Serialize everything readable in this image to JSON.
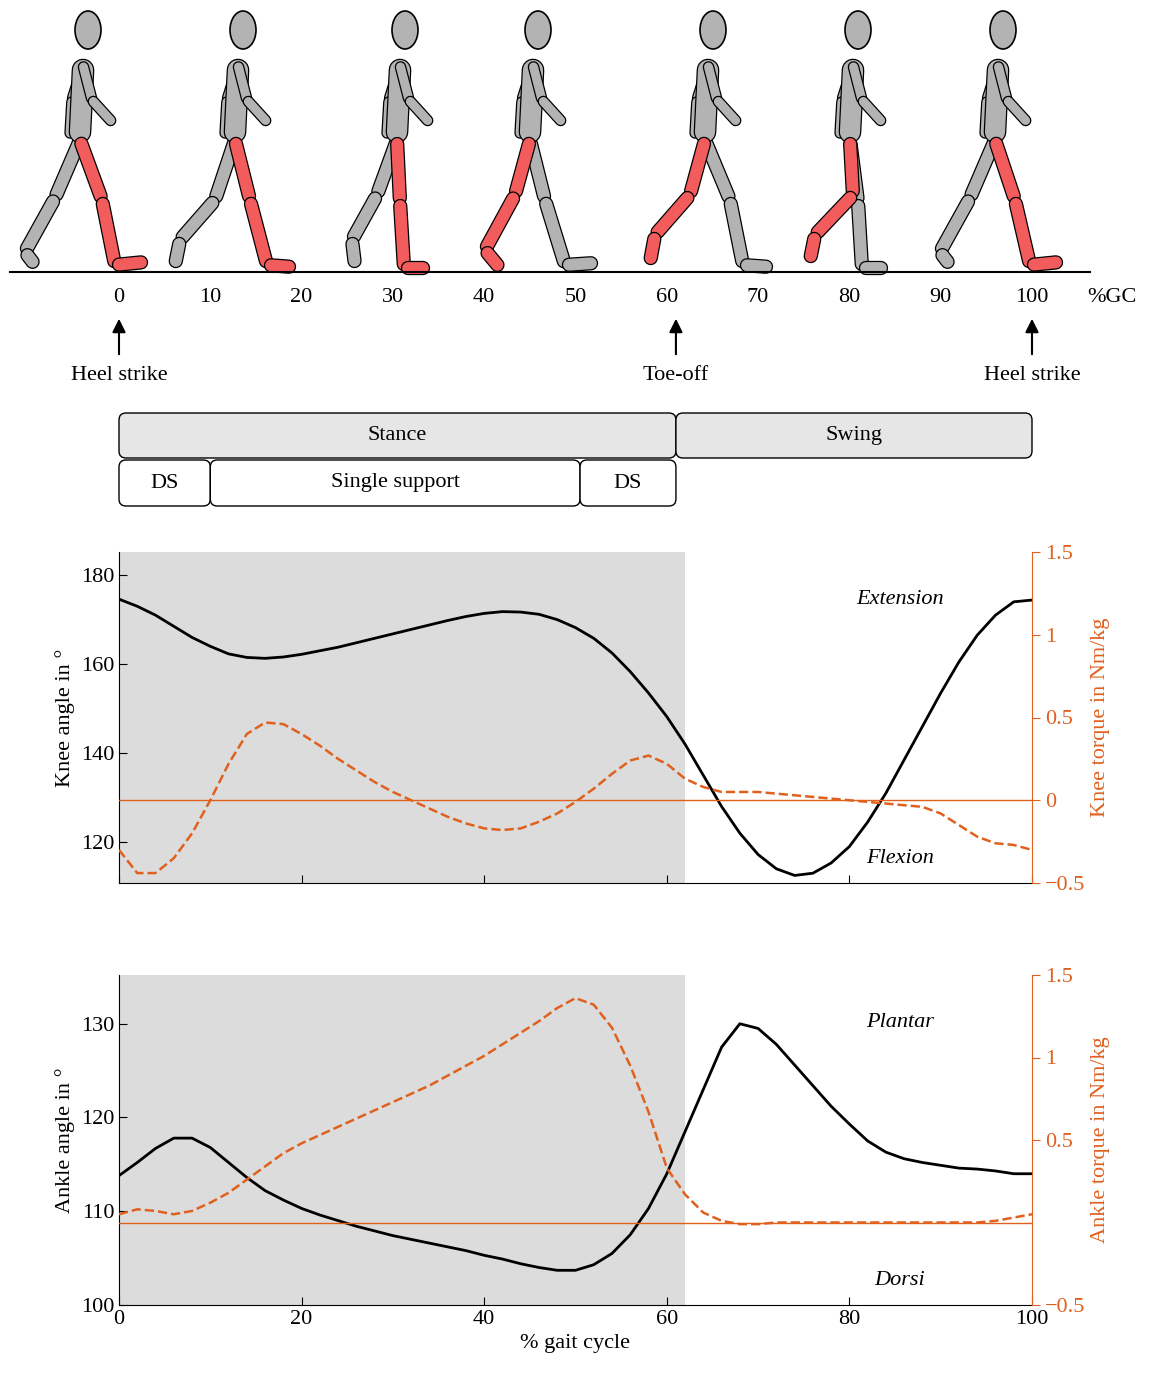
{
  "diagram": {
    "axis": {
      "ticks": [
        0,
        10,
        20,
        30,
        40,
        50,
        60,
        70,
        80,
        90,
        100
      ],
      "label": "%GC"
    },
    "events": [
      {
        "position": 0,
        "label": "Heel strike"
      },
      {
        "position": 61,
        "label": "Toe-off"
      },
      {
        "position": 100,
        "label": "Heel strike"
      }
    ],
    "phases": [
      {
        "label": "Stance",
        "start": 0,
        "end": 61
      },
      {
        "label": "Swing",
        "start": 61,
        "end": 100
      }
    ],
    "subphases": [
      {
        "label": "DS",
        "start": 0,
        "end": 10
      },
      {
        "label": "Single support",
        "start": 10,
        "end": 50.5
      },
      {
        "label": "DS",
        "start": 50.5,
        "end": 61
      }
    ]
  },
  "chart_data": [
    {
      "type": "line",
      "x": [
        0,
        2,
        4,
        6,
        8,
        10,
        12,
        14,
        16,
        18,
        20,
        22,
        24,
        26,
        28,
        30,
        32,
        34,
        36,
        38,
        40,
        42,
        44,
        46,
        48,
        50,
        52,
        54,
        56,
        58,
        60,
        62,
        64,
        66,
        68,
        70,
        72,
        74,
        76,
        78,
        80,
        82,
        84,
        86,
        88,
        90,
        92,
        94,
        96,
        98,
        100
      ],
      "xlim": [
        0,
        100
      ],
      "xticks": [
        0,
        20,
        40,
        60,
        80,
        100
      ],
      "tick_labels": "y",
      "ylabel": "Knee angle in °",
      "ylim": [
        110.8,
        185.2
      ],
      "yticks": [
        120,
        140,
        160,
        180
      ],
      "y2label": "Knee torque in Nm/kg",
      "y2lim": [
        -0.5,
        1.5
      ],
      "y2ticks": [
        {
          "value": -0.5,
          "label": "−0.5"
        },
        0,
        0.5,
        1,
        1.5
      ],
      "shaded": [
        0,
        62
      ],
      "reference_line": 0,
      "annotations": [
        "Extension",
        "Flexion"
      ],
      "series": [
        {
          "color": "#000000",
          "line_style": "solid",
          "values": [
            174.6,
            173,
            171,
            168.5,
            166,
            164,
            162.3,
            161.5,
            161.3,
            161.6,
            162.2,
            163,
            163.8,
            164.8,
            165.8,
            166.8,
            167.8,
            168.8,
            169.8,
            170.7,
            171.4,
            171.8,
            171.7,
            171.2,
            170,
            168.2,
            165.8,
            162.5,
            158.3,
            153.5,
            148.2,
            142,
            135,
            128,
            122,
            117.2,
            114,
            112.5,
            113,
            115.3,
            119,
            124.5,
            131,
            138.5,
            146,
            153.5,
            160.5,
            166.5,
            171,
            174,
            174.4
          ]
        },
        {
          "color": "#e0601e",
          "line_style": "dashed",
          "axis": "y2",
          "values": [
            -0.3,
            -0.44,
            -0.44,
            -0.35,
            -0.2,
            0.0,
            0.22,
            0.4,
            0.47,
            0.46,
            0.4,
            0.33,
            0.25,
            0.18,
            0.11,
            0.05,
            0.0,
            -0.05,
            -0.1,
            -0.14,
            -0.17,
            -0.18,
            -0.17,
            -0.13,
            -0.08,
            -0.01,
            0.07,
            0.16,
            0.24,
            0.27,
            0.22,
            0.13,
            0.08,
            0.05,
            0.05,
            0.05,
            0.04,
            0.03,
            0.02,
            0.01,
            0.0,
            -0.01,
            -0.02,
            -0.03,
            -0.04,
            -0.08,
            -0.15,
            -0.22,
            -0.26,
            -0.27,
            -0.3
          ]
        }
      ]
    },
    {
      "type": "line",
      "x": [
        0,
        2,
        4,
        6,
        8,
        10,
        12,
        14,
        16,
        18,
        20,
        22,
        24,
        26,
        28,
        30,
        32,
        34,
        36,
        38,
        40,
        42,
        44,
        46,
        48,
        50,
        52,
        54,
        56,
        58,
        60,
        62,
        64,
        66,
        68,
        70,
        72,
        74,
        76,
        78,
        80,
        82,
        84,
        86,
        88,
        90,
        92,
        94,
        96,
        98,
        100
      ],
      "xlim": [
        0,
        100
      ],
      "xticks": [
        0,
        20,
        40,
        60,
        80,
        100
      ],
      "xlabel": "% gait cycle",
      "ylabel": "Ankle angle in °",
      "ylim": [
        100,
        135.2
      ],
      "yticks": [
        100,
        110,
        120,
        130
      ],
      "y2label": "Ankle torque in Nm/kg",
      "y2lim": [
        -0.5,
        1.5
      ],
      "y2ticks": [
        {
          "value": -0.5,
          "label": "−0.5"
        },
        0.5,
        1,
        1.5
      ],
      "shaded": [
        0,
        62
      ],
      "reference_line": 0,
      "annotations": [
        "Plantar",
        "Dorsi"
      ],
      "series": [
        {
          "color": "#000000",
          "line_style": "solid",
          "values": [
            113.8,
            115.2,
            116.7,
            117.8,
            117.8,
            116.8,
            115.2,
            113.6,
            112.2,
            111.2,
            110.3,
            109.6,
            109,
            108.4,
            107.9,
            107.4,
            107,
            106.6,
            106.2,
            105.8,
            105.3,
            104.9,
            104.4,
            104,
            103.7,
            103.7,
            104.3,
            105.5,
            107.5,
            110.3,
            114,
            118.5,
            123,
            127.5,
            130,
            129.5,
            127.8,
            125.6,
            123.4,
            121.2,
            119.3,
            117.5,
            116.3,
            115.6,
            115.2,
            114.9,
            114.6,
            114.5,
            114.3,
            114,
            114
          ]
        },
        {
          "color": "#e0601e",
          "line_style": "dashed",
          "axis": "y2",
          "values": [
            0.05,
            0.08,
            0.07,
            0.05,
            0.07,
            0.12,
            0.18,
            0.26,
            0.34,
            0.42,
            0.48,
            0.53,
            0.58,
            0.63,
            0.68,
            0.73,
            0.78,
            0.83,
            0.89,
            0.95,
            1.01,
            1.08,
            1.15,
            1.22,
            1.3,
            1.36,
            1.32,
            1.18,
            0.95,
            0.67,
            0.33,
            0.17,
            0.06,
            0.01,
            -0.01,
            -0.01,
            0.0,
            0.0,
            0.0,
            0.0,
            0.0,
            0.0,
            0.0,
            0.0,
            0.0,
            0.0,
            0.0,
            0.0,
            0.01,
            0.03,
            0.05
          ]
        }
      ]
    }
  ]
}
